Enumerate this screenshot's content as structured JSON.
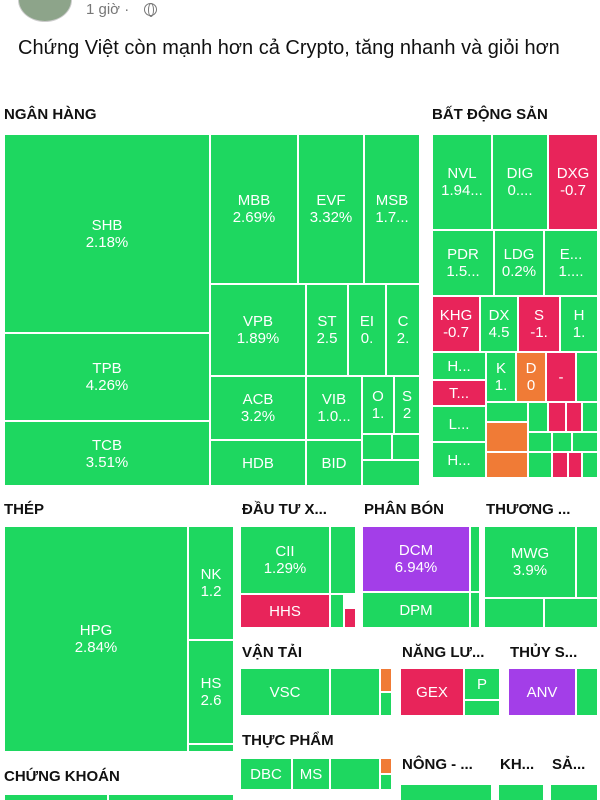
{
  "post": {
    "time": "1 giờ",
    "separator": "·",
    "text": "Chứng Việt còn mạnh hơn cả Crypto, tăng nhanh và giỏi hơn"
  },
  "colors": {
    "up": "#1ed760",
    "down": "#e8245a",
    "ceiling": "#a33ee8",
    "orange": "#f07b36"
  },
  "sectors": {
    "ngan_hang": "NGÂN HÀNG",
    "bat_dong_san": "BẤT ĐỘNG SẢN",
    "thep": "THÉP",
    "dau_tu": "ĐẦU TƯ X...",
    "phan_bon": "PHÂN BÓN",
    "thuong": "THƯƠNG ...",
    "van_tai": "VẬN TẢI",
    "nang_luong": "NĂNG LƯ...",
    "thuy_san": "THỦY S...",
    "thuc_pham": "THỰC PHẨM",
    "chung_khoan": "CHỨNG KHOÁN",
    "nong": "NÔNG - ...",
    "kh": "KH...",
    "sa": "SẢ..."
  },
  "tiles": {
    "shb": {
      "name": "SHB",
      "pct": "2.18%"
    },
    "tpb": {
      "name": "TPB",
      "pct": "4.26%"
    },
    "tcb": {
      "name": "TCB",
      "pct": "3.51%"
    },
    "mbb": {
      "name": "MBB",
      "pct": "2.69%"
    },
    "evf": {
      "name": "EVF",
      "pct": "3.32%"
    },
    "msb": {
      "name": "MSB",
      "pct": "1.7..."
    },
    "vpb": {
      "name": "VPB",
      "pct": "1.89%"
    },
    "st": {
      "name": "ST",
      "pct": "2.5"
    },
    "ei": {
      "name": "EI",
      "pct": "0."
    },
    "c": {
      "name": "C",
      "pct": "2."
    },
    "acb": {
      "name": "ACB",
      "pct": "3.2%"
    },
    "vib": {
      "name": "VIB",
      "pct": "1.0..."
    },
    "o": {
      "name": "O",
      "pct": "1."
    },
    "s": {
      "name": "S",
      "pct": "2"
    },
    "hdb": {
      "name": "HDB"
    },
    "bid": {
      "name": "BID"
    },
    "nvl": {
      "name": "NVL",
      "pct": "1.94..."
    },
    "dig": {
      "name": "DIG",
      "pct": "0...."
    },
    "dxg": {
      "name": "DXG",
      "pct": "-0.7"
    },
    "pdr": {
      "name": "PDR",
      "pct": "1.5..."
    },
    "ldg": {
      "name": "LDG",
      "pct": "0.2%"
    },
    "e": {
      "name": "E...",
      "pct": "1...."
    },
    "khg": {
      "name": "KHG",
      "pct": "-0.7"
    },
    "dx": {
      "name": "DX",
      "pct": "4.5"
    },
    "s2": {
      "name": "S",
      "pct": "-1."
    },
    "h": {
      "name": "H",
      "pct": "1."
    },
    "h2": {
      "name": "H..."
    },
    "k": {
      "name": "K",
      "pct": "1."
    },
    "d": {
      "name": "D",
      "pct": "0"
    },
    "dash": {
      "name": "-"
    },
    "t": {
      "name": "T..."
    },
    "l": {
      "name": "L..."
    },
    "h3": {
      "name": "H..."
    },
    "hpg": {
      "name": "HPG",
      "pct": "2.84%"
    },
    "nk": {
      "name": "NK",
      "pct": "1.2"
    },
    "hs": {
      "name": "HS",
      "pct": "2.6"
    },
    "cii": {
      "name": "CII",
      "pct": "1.29%"
    },
    "hhs": {
      "name": "HHS"
    },
    "dcm": {
      "name": "DCM",
      "pct": "6.94%"
    },
    "dpm": {
      "name": "DPM"
    },
    "mwg": {
      "name": "MWG",
      "pct": "3.9%"
    },
    "vsc": {
      "name": "VSC"
    },
    "gex": {
      "name": "GEX"
    },
    "p": {
      "name": "P"
    },
    "anv": {
      "name": "ANV"
    },
    "dbc": {
      "name": "DBC"
    },
    "ms": {
      "name": "MS"
    }
  }
}
